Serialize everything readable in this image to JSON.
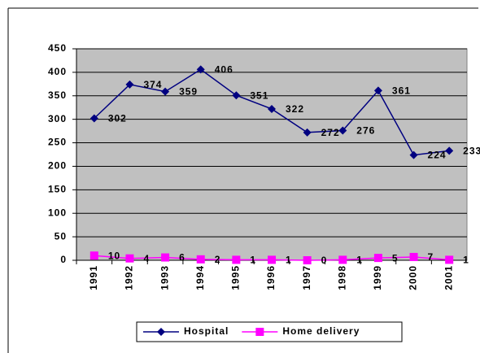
{
  "chart_data": {
    "type": "line",
    "categories": [
      "1991",
      "1992",
      "1993",
      "1994",
      "1995",
      "1996",
      "1997",
      "1998",
      "1999",
      "2000",
      "2001"
    ],
    "series": [
      {
        "name": "Hospital",
        "color": "#000080",
        "marker": "diamond",
        "values": [
          302,
          374,
          359,
          406,
          351,
          322,
          272,
          276,
          361,
          224,
          233
        ]
      },
      {
        "name": "Home delivery",
        "color": "#ff00ff",
        "marker": "square",
        "values": [
          10,
          4,
          6,
          2,
          1,
          1,
          0,
          1,
          5,
          7,
          1
        ]
      }
    ],
    "ylim": [
      0,
      450
    ],
    "yticks": [
      0,
      50,
      100,
      150,
      200,
      250,
      300,
      350,
      400,
      450
    ],
    "grid": true,
    "legend": "bottom",
    "plot_background": "#c0c0c0"
  }
}
